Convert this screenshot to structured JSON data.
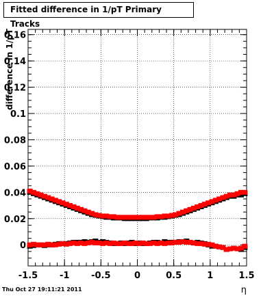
{
  "title": "Fitted difference in 1/pT  Primary Tracks",
  "timestamp": "Thu Oct 27 19:11:21 2011",
  "chart_data": {
    "type": "scatter",
    "title": "Fitted difference in 1/pT  Primary Tracks",
    "xlabel": "η",
    "ylabel": "difference in 1/pT",
    "xlim": [
      -1.5,
      1.5
    ],
    "ylim": [
      -0.016,
      0.164
    ],
    "grid": true,
    "x_ticks": [
      "-1.5",
      "-1",
      "-0.5",
      "0",
      "0.5",
      "1",
      "1.5"
    ],
    "y_ticks": [
      "0",
      "0.02",
      "0.04",
      "0.06",
      "0.08",
      "0.1",
      "0.12",
      "0.14",
      "0.16"
    ],
    "series": [
      {
        "color": "#000000",
        "x": [
          -1.475,
          -1.425,
          -1.375,
          -1.325,
          -1.275,
          -1.225,
          -1.175,
          -1.125,
          -1.075,
          -1.025,
          -0.975,
          -0.925,
          -0.875,
          -0.825,
          -0.775,
          -0.725,
          -0.675,
          -0.625,
          -0.575,
          -0.525,
          -0.475,
          -0.425,
          -0.375,
          -0.325,
          -0.275,
          -0.225,
          -0.175,
          -0.125,
          -0.075,
          -0.025,
          0.025,
          0.075,
          0.125,
          0.175,
          0.225,
          0.275,
          0.325,
          0.375,
          0.425,
          0.475,
          0.525,
          0.575,
          0.625,
          0.675,
          0.725,
          0.775,
          0.825,
          0.875,
          0.925,
          0.975,
          1.025,
          1.075,
          1.125,
          1.175,
          1.225,
          1.275,
          1.325,
          1.375,
          1.425,
          1.475
        ],
        "y": [
          0.04,
          0.039,
          0.038,
          0.037,
          0.036,
          0.035,
          0.034,
          0.033,
          0.032,
          0.031,
          0.03,
          0.029,
          0.028,
          0.027,
          0.026,
          0.025,
          0.024,
          0.023,
          0.0225,
          0.022,
          0.0215,
          0.021,
          0.021,
          0.0205,
          0.0205,
          0.0205,
          0.02,
          0.02,
          0.02,
          0.02,
          0.02,
          0.02,
          0.02,
          0.0205,
          0.0205,
          0.0205,
          0.021,
          0.021,
          0.0215,
          0.022,
          0.0225,
          0.023,
          0.024,
          0.025,
          0.026,
          0.027,
          0.028,
          0.029,
          0.03,
          0.031,
          0.032,
          0.033,
          0.034,
          0.035,
          0.036,
          0.037,
          0.037,
          0.038,
          0.038,
          0.039
        ]
      },
      {
        "color": "#ff0000",
        "x": [
          -1.475,
          -1.425,
          -1.375,
          -1.325,
          -1.275,
          -1.225,
          -1.175,
          -1.125,
          -1.075,
          -1.025,
          -0.975,
          -0.925,
          -0.875,
          -0.825,
          -0.775,
          -0.725,
          -0.675,
          -0.625,
          -0.575,
          -0.525,
          -0.475,
          -0.425,
          -0.375,
          -0.325,
          -0.275,
          -0.225,
          -0.175,
          -0.125,
          -0.075,
          -0.025,
          0.025,
          0.075,
          0.125,
          0.175,
          0.225,
          0.275,
          0.325,
          0.375,
          0.425,
          0.475,
          0.525,
          0.575,
          0.625,
          0.675,
          0.725,
          0.775,
          0.825,
          0.875,
          0.925,
          0.975,
          1.025,
          1.075,
          1.125,
          1.175,
          1.225,
          1.275,
          1.325,
          1.375,
          1.425,
          1.475
        ],
        "y": [
          0.041,
          0.04,
          0.039,
          0.038,
          0.037,
          0.036,
          0.035,
          0.034,
          0.033,
          0.032,
          0.031,
          0.03,
          0.029,
          0.028,
          0.027,
          0.026,
          0.025,
          0.024,
          0.023,
          0.0225,
          0.022,
          0.022,
          0.0215,
          0.0215,
          0.021,
          0.021,
          0.021,
          0.021,
          0.021,
          0.021,
          0.021,
          0.021,
          0.021,
          0.021,
          0.021,
          0.0215,
          0.0215,
          0.022,
          0.022,
          0.0225,
          0.023,
          0.024,
          0.025,
          0.026,
          0.027,
          0.028,
          0.029,
          0.03,
          0.031,
          0.032,
          0.033,
          0.034,
          0.035,
          0.036,
          0.037,
          0.038,
          0.038,
          0.039,
          0.04,
          0.04
        ]
      },
      {
        "color": "#000000",
        "x": [
          -1.475,
          -1.425,
          -1.375,
          -1.325,
          -1.275,
          -1.225,
          -1.175,
          -1.125,
          -1.075,
          -1.025,
          -0.975,
          -0.925,
          -0.875,
          -0.825,
          -0.775,
          -0.725,
          -0.675,
          -0.625,
          -0.575,
          -0.525,
          -0.475,
          -0.425,
          -0.375,
          -0.325,
          -0.275,
          -0.225,
          -0.175,
          -0.125,
          -0.075,
          -0.025,
          0.025,
          0.075,
          0.125,
          0.175,
          0.225,
          0.275,
          0.325,
          0.375,
          0.425,
          0.475,
          0.525,
          0.575,
          0.625,
          0.675,
          0.725,
          0.775,
          0.825,
          0.875,
          0.925,
          0.975,
          1.025,
          1.075,
          1.125,
          1.175,
          1.225,
          1.275,
          1.325,
          1.375,
          1.425,
          1.475
        ],
        "y": [
          -0.001,
          -0.0005,
          0.0,
          0.0,
          -0.0005,
          0.0,
          0.0,
          0.0005,
          0.001,
          0.001,
          0.001,
          0.0015,
          0.002,
          0.002,
          0.002,
          0.0025,
          0.002,
          0.0025,
          0.003,
          0.002,
          0.0025,
          0.002,
          0.0015,
          0.001,
          0.001,
          0.0015,
          0.001,
          0.0015,
          0.002,
          0.001,
          0.0015,
          0.001,
          0.001,
          0.0015,
          0.002,
          0.002,
          0.0015,
          0.0025,
          0.002,
          0.002,
          0.002,
          0.0025,
          0.0025,
          0.003,
          0.002,
          0.0015,
          0.002,
          0.0015,
          0.001,
          0.0,
          -0.001,
          -0.001,
          -0.0015,
          -0.002,
          -0.0035,
          -0.003,
          -0.0025,
          -0.003,
          -0.0035,
          -0.002
        ]
      },
      {
        "color": "#ff0000",
        "x": [
          -1.475,
          -1.425,
          -1.375,
          -1.325,
          -1.275,
          -1.225,
          -1.175,
          -1.125,
          -1.075,
          -1.025,
          -0.975,
          -0.925,
          -0.875,
          -0.825,
          -0.775,
          -0.725,
          -0.675,
          -0.625,
          -0.575,
          -0.525,
          -0.475,
          -0.425,
          -0.375,
          -0.325,
          -0.275,
          -0.225,
          -0.175,
          -0.125,
          -0.075,
          -0.025,
          0.025,
          0.075,
          0.125,
          0.175,
          0.225,
          0.275,
          0.325,
          0.375,
          0.425,
          0.475,
          0.525,
          0.575,
          0.625,
          0.675,
          0.725,
          0.775,
          0.825,
          0.875,
          0.925,
          0.975,
          1.025,
          1.075,
          1.125,
          1.175,
          1.225,
          1.275,
          1.325,
          1.375,
          1.425,
          1.475
        ],
        "y": [
          0.0,
          0.0005,
          0.0,
          0.0,
          0.0,
          0.0005,
          0.0,
          0.0,
          0.0005,
          0.001,
          0.0005,
          0.001,
          0.0015,
          0.001,
          0.0015,
          0.001,
          0.0015,
          0.002,
          0.0015,
          0.0015,
          0.001,
          0.0015,
          0.001,
          0.0015,
          0.001,
          0.001,
          0.0015,
          0.001,
          0.001,
          0.0015,
          0.001,
          0.0015,
          0.001,
          0.001,
          0.0015,
          0.001,
          0.0015,
          0.001,
          0.0015,
          0.0015,
          0.002,
          0.002,
          0.0025,
          0.002,
          0.002,
          0.0015,
          0.001,
          0.001,
          0.0005,
          0.0005,
          0.0,
          -0.001,
          -0.0015,
          -0.002,
          -0.0035,
          -0.003,
          -0.0025,
          -0.003,
          -0.0025,
          -0.001
        ]
      }
    ]
  }
}
